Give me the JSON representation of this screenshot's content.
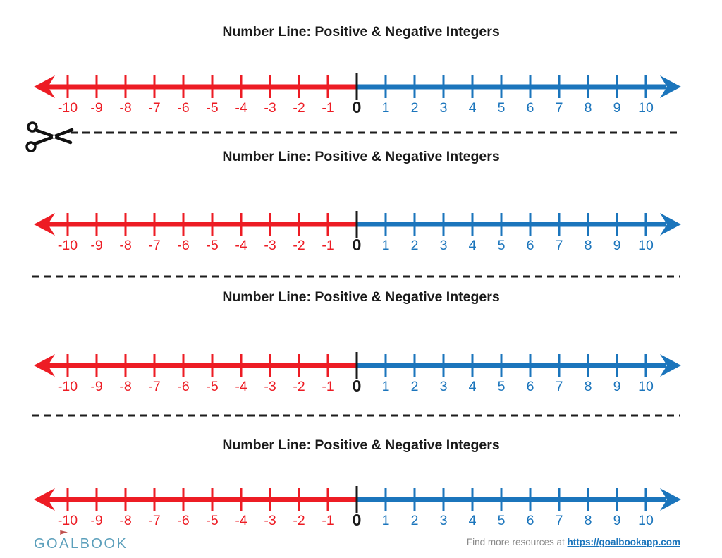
{
  "sections": [
    {
      "title": "Number Line: Positive & Negative Integers"
    },
    {
      "title": "Number Line: Positive & Negative Integers"
    },
    {
      "title": "Number Line: Positive & Negative Integers"
    },
    {
      "title": "Number Line: Positive & Negative Integers"
    }
  ],
  "numberline": {
    "values": [
      -10,
      -9,
      -8,
      -7,
      -6,
      -5,
      -4,
      -3,
      -2,
      -1,
      0,
      1,
      2,
      3,
      4,
      5,
      6,
      7,
      8,
      9,
      10
    ],
    "min": -10,
    "max": 10,
    "zero_label": "0"
  },
  "separators": [
    {
      "scissors": true
    },
    {
      "scissors": false
    },
    {
      "scissors": false
    }
  ],
  "colors": {
    "negative": "#ED1C24",
    "positive": "#1B75BC",
    "zero": "#1a1a1a",
    "dash": "#1c1c1c",
    "scissors": "#111111",
    "logo": "#5B9FBB",
    "flag": "#C0504D",
    "footer_text": "#8a8a8a",
    "link": "#1B75BC"
  },
  "footer": {
    "logo_text": "GOALBOOK",
    "resources_prefix": "Find more resources at",
    "resources_link": "https://goalbookapp.com"
  }
}
